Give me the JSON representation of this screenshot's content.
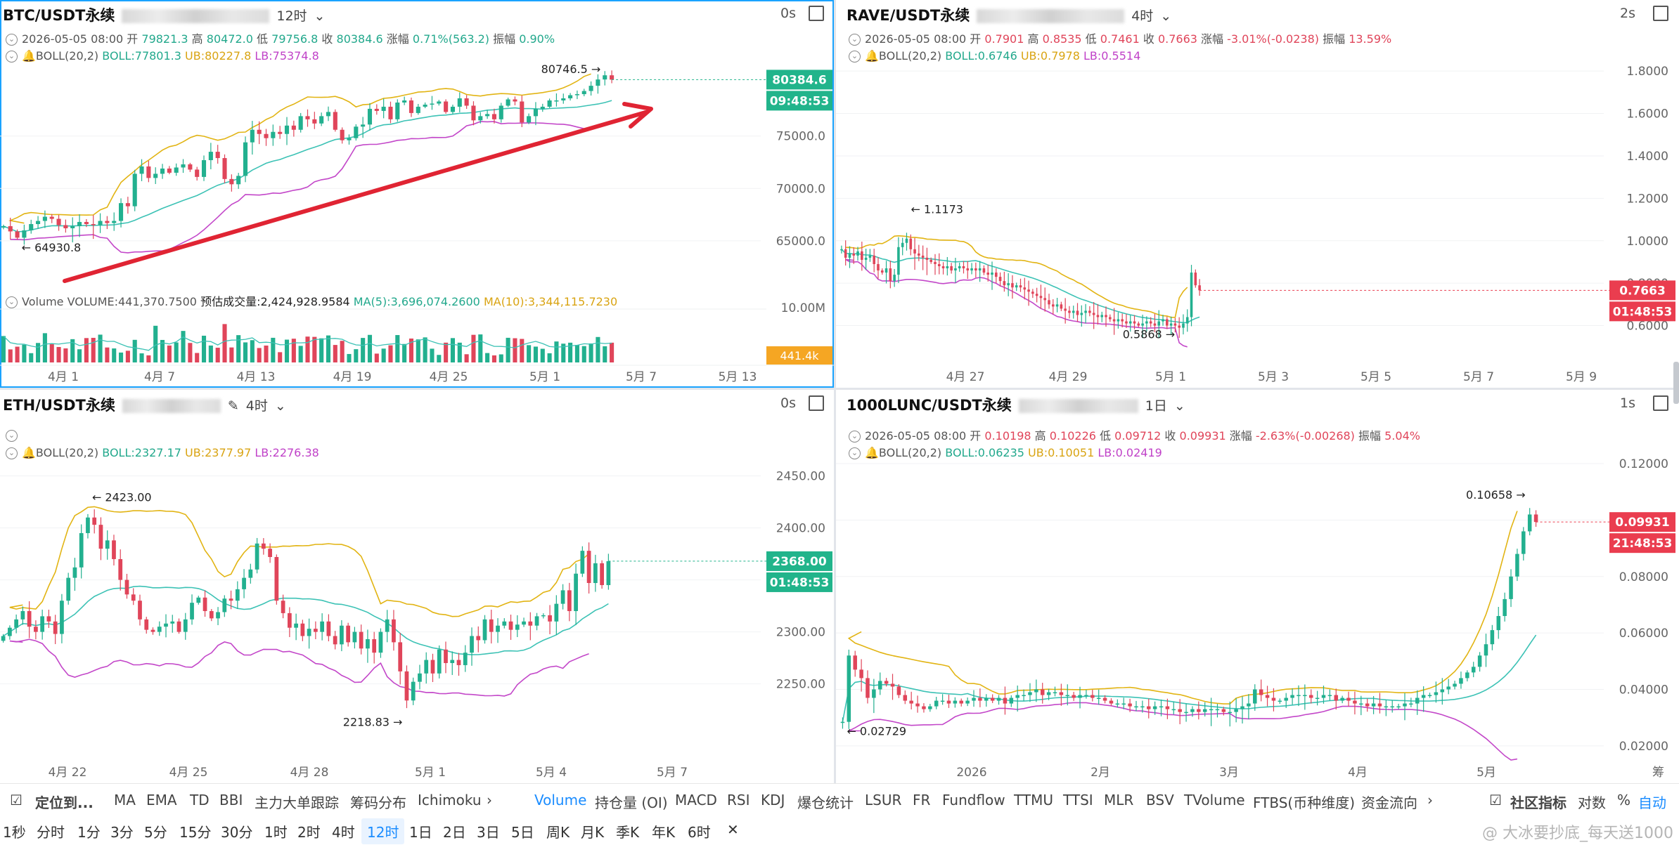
{
  "panels": [
    {
      "id": "btc",
      "title": "BTC/USDT永续",
      "timeframe": "12时",
      "lag": "0s",
      "ohlc": {
        "date": "2026-05-05 08:00",
        "open_label": "开",
        "open": "79821.3",
        "high_label": "高",
        "high": "80472.0",
        "low_label": "低",
        "low": "79756.8",
        "close_label": "收",
        "close": "80384.6",
        "chg_label": "涨幅",
        "chg": "0.71%(563.2)",
        "amp_label": "振幅",
        "amp": "0.90%"
      },
      "boll": {
        "label": "BOLL(20,2)",
        "mid": "BOLL:77801.3",
        "ub": "UB:80227.8",
        "lb": "LB:75374.8"
      },
      "volume_row": {
        "label": "Volume",
        "vol": "VOLUME:441,370.7500",
        "est": "预估成交量:2,424,928.9584",
        "ma5": "MA(5):3,696,074.2600",
        "ma10": "MA(10):3,344,115.7230"
      },
      "price_tag": "80384.6",
      "countdown": "09:48:53",
      "vol_axis_label": "10.00M",
      "vol_tag": "441.4k",
      "hi_anno": "80746.5 →",
      "lo_anno": "← 64930.8"
    },
    {
      "id": "rave",
      "title": "RAVE/USDT永续",
      "timeframe": "4时",
      "lag": "2s",
      "ohlc": {
        "date": "2026-05-05 08:00",
        "open_label": "开",
        "open": "0.7901",
        "high_label": "高",
        "high": "0.8535",
        "low_label": "低",
        "low": "0.7461",
        "close_label": "收",
        "close": "0.7663",
        "chg_label": "涨幅",
        "chg": "-3.01%(-0.0238)",
        "amp_label": "振幅",
        "amp": "13.59%"
      },
      "boll": {
        "label": "BOLL(20,2)",
        "mid": "BOLL:0.6746",
        "ub": "UB:0.7978",
        "lb": "LB:0.5514"
      },
      "price_tag": "0.7663",
      "countdown": "01:48:53",
      "hi_anno": "← 1.1173",
      "lo_anno": "0.5868 →"
    },
    {
      "id": "eth",
      "title": "ETH/USDT永续",
      "timeframe": "4时",
      "lag": "0s",
      "boll": {
        "label": "BOLL(20,2)",
        "mid": "BOLL:2327.17",
        "ub": "UB:2377.97",
        "lb": "LB:2276.38"
      },
      "price_tag": "2368.00",
      "countdown": "01:48:53",
      "hi_anno": "← 2423.00",
      "lo_anno": "2218.83 →"
    },
    {
      "id": "lunc",
      "title": "1000LUNC/USDT永续",
      "timeframe": "1日",
      "lag": "1s",
      "ohlc": {
        "date": "2026-05-05 08:00",
        "open_label": "开",
        "open": "0.10198",
        "high_label": "高",
        "high": "0.10226",
        "low_label": "低",
        "low": "0.09712",
        "close_label": "收",
        "close": "0.09931",
        "chg_label": "涨幅",
        "chg": "-2.63%(-0.00268)",
        "amp_label": "振幅",
        "amp": "5.04%"
      },
      "boll": {
        "label": "BOLL(20,2)",
        "mid": "BOLL:0.06235",
        "ub": "UB:0.10051",
        "lb": "LB:0.02419"
      },
      "price_tag": "0.09931",
      "countdown": "21:48:53",
      "hi_anno": "0.10658 →",
      "lo_anno": "← 0.02729"
    }
  ],
  "chart_data": [
    {
      "type": "candlestick",
      "symbol": "BTC/USDT永续",
      "interval": "12时",
      "x_ticks": [
        "4月 1",
        "4月 7",
        "4月 13",
        "4月 19",
        "4月 25",
        "5月 1",
        "5月 7",
        "5月 13"
      ],
      "y_ticks": [
        65000,
        70000,
        75000
      ],
      "ylim": [
        60500,
        84500
      ],
      "close": [
        66400,
        65900,
        65300,
        66000,
        66600,
        66900,
        67300,
        67100,
        66500,
        66200,
        66400,
        66800,
        66600,
        66500,
        66900,
        66700,
        66900,
        68600,
        68300,
        71400,
        72100,
        71000,
        71400,
        71900,
        71500,
        72000,
        72300,
        71800,
        71100,
        72700,
        73500,
        72900,
        70900,
        70400,
        71200,
        74400,
        75600,
        75200,
        74800,
        75400,
        75200,
        76000,
        75600,
        76900,
        76600,
        76200,
        76900,
        77300,
        75600,
        74600,
        74800,
        75900,
        76100,
        77600,
        77400,
        77800,
        76600,
        78200,
        78400,
        77200,
        77800,
        78000,
        78100,
        78300,
        77300,
        77800,
        78600,
        77900,
        76500,
        76900,
        77100,
        76600,
        77900,
        78500,
        78300,
        76300,
        76900,
        77600,
        77800,
        78400,
        78400,
        78600,
        78900,
        79000,
        79300,
        79800,
        80400,
        80800,
        80384.6
      ],
      "boll_mid_end": 77801.3,
      "boll_ub_end": 80227.8,
      "boll_lb_end": 75374.8,
      "high_marker": 80746.5,
      "low_marker": 64930.8,
      "last_price": 80384.6
    },
    {
      "type": "candlestick",
      "symbol": "RAVE/USDT永续",
      "interval": "4时",
      "x_ticks": [
        "4月 27",
        "4月 29",
        "5月 1",
        "5月 3",
        "5月 5",
        "5月 7",
        "5月 9"
      ],
      "y_ticks": [
        0.6,
        0.8,
        1.0,
        1.2,
        1.4,
        1.6,
        1.8
      ],
      "ylim": [
        0.38,
        1.87
      ],
      "close": [
        0.96,
        0.92,
        0.94,
        0.93,
        0.95,
        0.91,
        0.92,
        0.93,
        0.89,
        0.86,
        0.85,
        0.87,
        0.81,
        0.84,
        0.97,
        0.99,
        1.01,
        0.96,
        0.94,
        0.93,
        0.92,
        0.91,
        0.9,
        0.89,
        0.88,
        0.87,
        0.88,
        0.86,
        0.87,
        0.88,
        0.87,
        0.86,
        0.87,
        0.86,
        0.87,
        0.85,
        0.84,
        0.85,
        0.83,
        0.81,
        0.79,
        0.8,
        0.78,
        0.79,
        0.78,
        0.77,
        0.76,
        0.75,
        0.74,
        0.73,
        0.72,
        0.7,
        0.69,
        0.7,
        0.68,
        0.67,
        0.66,
        0.67,
        0.65,
        0.66,
        0.67,
        0.66,
        0.65,
        0.64,
        0.65,
        0.64,
        0.63,
        0.62,
        0.63,
        0.62,
        0.61,
        0.62,
        0.61,
        0.6,
        0.61,
        0.62,
        0.61,
        0.6,
        0.62,
        0.63,
        0.6,
        0.61,
        0.6,
        0.59,
        0.61,
        0.64,
        0.85,
        0.79,
        0.7663
      ],
      "boll_mid_end": 0.6746,
      "boll_ub_end": 0.7978,
      "boll_lb_end": 0.5514,
      "high_marker": 1.1173,
      "low_marker": 0.5868,
      "last_price": 0.7663
    },
    {
      "type": "candlestick",
      "symbol": "ETH/USDT永续",
      "interval": "4时",
      "x_ticks": [
        "4月 22",
        "4月 25",
        "4月 28",
        "5月 1",
        "5月 4",
        "5月 7"
      ],
      "y_ticks": [
        2250,
        2300,
        2350,
        2400,
        2450
      ],
      "ylim": [
        2195,
        2472
      ],
      "close": [
        2296,
        2304,
        2312,
        2320,
        2305,
        2300,
        2315,
        2310,
        2298,
        2330,
        2352,
        2362,
        2395,
        2410,
        2403,
        2380,
        2388,
        2370,
        2350,
        2336,
        2330,
        2312,
        2302,
        2300,
        2305,
        2308,
        2310,
        2300,
        2312,
        2328,
        2333,
        2320,
        2313,
        2319,
        2332,
        2330,
        2341,
        2352,
        2360,
        2385,
        2380,
        2372,
        2330,
        2318,
        2304,
        2308,
        2296,
        2303,
        2300,
        2310,
        2296,
        2288,
        2306,
        2290,
        2300,
        2284,
        2293,
        2280,
        2300,
        2312,
        2290,
        2262,
        2234,
        2252,
        2260,
        2273,
        2260,
        2283,
        2270,
        2273,
        2268,
        2280,
        2296,
        2292,
        2312,
        2300,
        2306,
        2310,
        2302,
        2307,
        2310,
        2306,
        2315,
        2316,
        2310,
        2327,
        2340,
        2320,
        2356,
        2378,
        2347,
        2366,
        2345,
        2368
      ],
      "boll_mid_end": 2327.17,
      "boll_ub_end": 2377.97,
      "boll_lb_end": 2276.38,
      "high_marker": 2423.0,
      "low_marker": 2218.83,
      "last_price": 2368.0
    },
    {
      "type": "candlestick",
      "symbol": "1000LUNC/USDT永续",
      "interval": "1日",
      "x_ticks": [
        "2026",
        "2月",
        "3月",
        "4月",
        "5月"
      ],
      "y_ticks": [
        0.02,
        0.04,
        0.06,
        0.08,
        0.1,
        0.12
      ],
      "ylim": [
        0.0105,
        0.1225
      ],
      "close": [
        0.0285,
        0.052,
        0.047,
        0.044,
        0.037,
        0.04,
        0.043,
        0.042,
        0.041,
        0.038,
        0.036,
        0.035,
        0.034,
        0.033,
        0.034,
        0.036,
        0.036,
        0.035,
        0.036,
        0.035,
        0.036,
        0.037,
        0.036,
        0.037,
        0.036,
        0.037,
        0.035,
        0.037,
        0.038,
        0.038,
        0.039,
        0.04,
        0.038,
        0.039,
        0.039,
        0.038,
        0.038,
        0.037,
        0.038,
        0.038,
        0.037,
        0.037,
        0.036,
        0.035,
        0.035,
        0.035,
        0.034,
        0.034,
        0.034,
        0.033,
        0.034,
        0.034,
        0.033,
        0.033,
        0.032,
        0.032,
        0.033,
        0.032,
        0.033,
        0.033,
        0.033,
        0.032,
        0.032,
        0.033,
        0.034,
        0.035,
        0.04,
        0.038,
        0.037,
        0.036,
        0.036,
        0.037,
        0.038,
        0.038,
        0.038,
        0.037,
        0.037,
        0.038,
        0.038,
        0.036,
        0.037,
        0.036,
        0.035,
        0.035,
        0.034,
        0.035,
        0.034,
        0.034,
        0.034,
        0.034,
        0.035,
        0.035,
        0.037,
        0.038,
        0.038,
        0.039,
        0.04,
        0.041,
        0.042,
        0.044,
        0.046,
        0.048,
        0.052,
        0.056,
        0.061,
        0.066,
        0.072,
        0.08,
        0.088,
        0.096,
        0.10198,
        0.09931
      ],
      "boll_mid_end": 0.06235,
      "boll_ub_end": 0.10051,
      "boll_lb_end": 0.02419,
      "high_marker": 0.10658,
      "low_marker": 0.02729,
      "last_price": 0.09931
    }
  ],
  "indicator_bar": {
    "locate": "定位到...",
    "items": [
      "MA",
      "EMA",
      "TD",
      "BBI",
      "主力大单跟踪",
      "筹码分布",
      "Ichimoku"
    ],
    "sub_items": [
      "Volume",
      "持仓量 (OI)",
      "MACD",
      "RSI",
      "KDJ",
      "爆仓统计",
      "LSUR",
      "FR",
      "Fundflow",
      "TTMU",
      "TTSI",
      "MLR",
      "BSV",
      "TVolume",
      "FTBS(币种维度)",
      "资金流向"
    ],
    "community": "社区指标",
    "log": "对数",
    "pct": "%",
    "auto": "自动",
    "extra": "筹"
  },
  "interval_bar": {
    "items": [
      "1秒",
      "分时",
      "1分",
      "3分",
      "5分",
      "15分",
      "30分",
      "1时",
      "2时",
      "4时",
      "12时",
      "1日",
      "2日",
      "3日",
      "5日",
      "周K",
      "月K",
      "季K",
      "年K",
      "6时"
    ],
    "active": "12时"
  },
  "watermark": "@ 大冰要抄底_每天送1000",
  "colors": {
    "up": "#22b08f",
    "down": "#e0455a",
    "mid": "#3cc2b5",
    "ub": "#e2b413",
    "lb": "#c347c9",
    "accent": "#1a8cff",
    "tag_green": "#21b48b",
    "tag_red": "#ea3d4f",
    "tag_orange": "#f5a623"
  }
}
